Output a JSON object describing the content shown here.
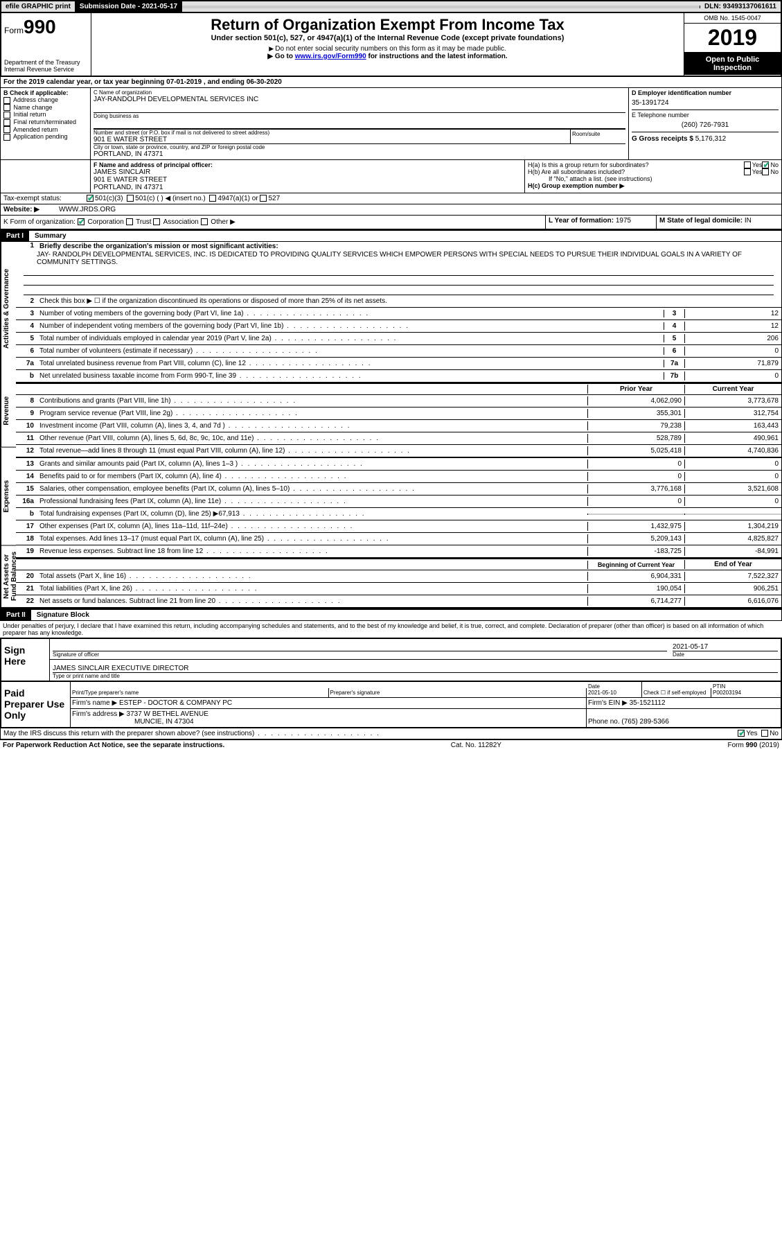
{
  "topbar": {
    "efile": "efile GRAPHIC print",
    "submission": "Submission Date - 2021-05-17",
    "dln": "DLN: 93493137061611"
  },
  "header": {
    "form_label": "Form",
    "form_num": "990",
    "title": "Return of Organization Exempt From Income Tax",
    "subtitle": "Under section 501(c), 527, or 4947(a)(1) of the Internal Revenue Code (except private foundations)",
    "note1": "Do not enter social security numbers on this form as it may be made public.",
    "note2_pre": "Go to ",
    "note2_link": "www.irs.gov/Form990",
    "note2_post": " for instructions and the latest information.",
    "dept": "Department of the Treasury\nInternal Revenue Service",
    "omb": "OMB No. 1545-0047",
    "year": "2019",
    "open": "Open to Public Inspection"
  },
  "line_a": "For the 2019 calendar year, or tax year beginning 07-01-2019   , and ending 06-30-2020",
  "section_b": {
    "label": "B Check if applicable:",
    "opts": [
      "Address change",
      "Name change",
      "Initial return",
      "Final return/terminated",
      "Amended return",
      "Application pending"
    ]
  },
  "section_c": {
    "label_name": "C Name of organization",
    "org_name": "JAY-RANDOLPH DEVELOPMENTAL SERVICES INC",
    "dba_label": "Doing business as",
    "dba": "",
    "addr_label": "Number and street (or P.O. box if mail is not delivered to street address)",
    "room_label": "Room/suite",
    "addr": "901 E WATER STREET",
    "city_label": "City or town, state or province, country, and ZIP or foreign postal code",
    "city": "PORTLAND, IN  47371"
  },
  "section_d": {
    "label": "D Employer identification number",
    "ein": "35-1391724"
  },
  "section_e": {
    "label": "E Telephone number",
    "phone": "(260) 726-7931"
  },
  "section_g": {
    "label": "G Gross receipts $",
    "amount": "5,176,312"
  },
  "section_f": {
    "label": "F  Name and address of principal officer:",
    "name": "JAMES SINCLAIR",
    "addr1": "901 E WATER STREET",
    "addr2": "PORTLAND, IN  47371"
  },
  "section_h": {
    "ha": "H(a)  Is this a group return for subordinates?",
    "hb": "H(b)  Are all subordinates included?",
    "hb_note": "If \"No,\" attach a list. (see instructions)",
    "hc": "H(c)  Group exemption number ▶"
  },
  "section_i": {
    "label": "Tax-exempt status:",
    "o1": "501(c)(3)",
    "o2": "501(c) (   ) ◀ (insert no.)",
    "o3": "4947(a)(1) or",
    "o4": "527"
  },
  "section_j": {
    "label": "Website: ▶",
    "url": "WWW.JRDS.ORG"
  },
  "section_k": {
    "label": "K Form of organization:",
    "o1": "Corporation",
    "o2": "Trust",
    "o3": "Association",
    "o4": "Other ▶"
  },
  "section_l": {
    "label": "L Year of formation:",
    "val": "1975"
  },
  "section_m": {
    "label": "M State of legal domicile:",
    "val": "IN"
  },
  "part1": {
    "label": "Part I",
    "title": "Summary"
  },
  "summary": {
    "q1_label": "Briefly describe the organization's mission or most significant activities:",
    "q1_text": "JAY- RANDOLPH DEVELOPMENTAL SERVICES, INC. IS DEDICATED TO PROVIDING QUALITY SERVICES WHICH EMPOWER PERSONS WITH SPECIAL NEEDS TO PURSUE THEIR INDIVIDUAL GOALS IN A VARIETY OF COMMUNITY SETTINGS.",
    "q2": "Check this box ▶ ☐ if the organization discontinued its operations or disposed of more than 25% of its net assets.",
    "rows_act": [
      {
        "ln": "3",
        "desc": "Number of voting members of the governing body (Part VI, line 1a)",
        "box": "3",
        "val": "12"
      },
      {
        "ln": "4",
        "desc": "Number of independent voting members of the governing body (Part VI, line 1b)",
        "box": "4",
        "val": "12"
      },
      {
        "ln": "5",
        "desc": "Total number of individuals employed in calendar year 2019 (Part V, line 2a)",
        "box": "5",
        "val": "206"
      },
      {
        "ln": "6",
        "desc": "Total number of volunteers (estimate if necessary)",
        "box": "6",
        "val": "0"
      },
      {
        "ln": "7a",
        "desc": "Total unrelated business revenue from Part VIII, column (C), line 12",
        "box": "7a",
        "val": "71,879"
      },
      {
        "ln": "b",
        "desc": "Net unrelated business taxable income from Form 990-T, line 39",
        "box": "7b",
        "val": "0"
      }
    ],
    "prior_header": "Prior Year",
    "curr_header": "Current Year",
    "rows_rev": [
      {
        "ln": "8",
        "desc": "Contributions and grants (Part VIII, line 1h)",
        "py": "4,062,090",
        "cy": "3,773,678"
      },
      {
        "ln": "9",
        "desc": "Program service revenue (Part VIII, line 2g)",
        "py": "355,301",
        "cy": "312,754"
      },
      {
        "ln": "10",
        "desc": "Investment income (Part VIII, column (A), lines 3, 4, and 7d )",
        "py": "79,238",
        "cy": "163,443"
      },
      {
        "ln": "11",
        "desc": "Other revenue (Part VIII, column (A), lines 5, 6d, 8c, 9c, 10c, and 11e)",
        "py": "528,789",
        "cy": "490,961"
      },
      {
        "ln": "12",
        "desc": "Total revenue—add lines 8 through 11 (must equal Part VIII, column (A), line 12)",
        "py": "5,025,418",
        "cy": "4,740,836"
      }
    ],
    "rows_exp": [
      {
        "ln": "13",
        "desc": "Grants and similar amounts paid (Part IX, column (A), lines 1–3 )",
        "py": "0",
        "cy": "0"
      },
      {
        "ln": "14",
        "desc": "Benefits paid to or for members (Part IX, column (A), line 4)",
        "py": "0",
        "cy": "0"
      },
      {
        "ln": "15",
        "desc": "Salaries, other compensation, employee benefits (Part IX, column (A), lines 5–10)",
        "py": "3,776,168",
        "cy": "3,521,608"
      },
      {
        "ln": "16a",
        "desc": "Professional fundraising fees (Part IX, column (A), line 11e)",
        "py": "0",
        "cy": "0"
      },
      {
        "ln": "b",
        "desc": "Total fundraising expenses (Part IX, column (D), line 25) ▶67,913",
        "py": "GREY",
        "cy": "GREY"
      },
      {
        "ln": "17",
        "desc": "Other expenses (Part IX, column (A), lines 11a–11d, 11f–24e)",
        "py": "1,432,975",
        "cy": "1,304,219"
      },
      {
        "ln": "18",
        "desc": "Total expenses. Add lines 13–17 (must equal Part IX, column (A), line 25)",
        "py": "5,209,143",
        "cy": "4,825,827"
      },
      {
        "ln": "19",
        "desc": "Revenue less expenses. Subtract line 18 from line 12",
        "py": "-183,725",
        "cy": "-84,991"
      }
    ],
    "boy_header": "Beginning of Current Year",
    "eoy_header": "End of Year",
    "rows_net": [
      {
        "ln": "20",
        "desc": "Total assets (Part X, line 16)",
        "py": "6,904,331",
        "cy": "7,522,327"
      },
      {
        "ln": "21",
        "desc": "Total liabilities (Part X, line 26)",
        "py": "190,054",
        "cy": "906,251"
      },
      {
        "ln": "22",
        "desc": "Net assets or fund balances. Subtract line 21 from line 20",
        "py": "6,714,277",
        "cy": "6,616,076"
      }
    ],
    "vlabels": {
      "act": "Activities & Governance",
      "rev": "Revenue",
      "exp": "Expenses",
      "net": "Net Assets or Fund Balances"
    }
  },
  "part2": {
    "label": "Part II",
    "title": "Signature Block",
    "penalty": "Under penalties of perjury, I declare that I have examined this return, including accompanying schedules and statements, and to the best of my knowledge and belief, it is true, correct, and complete. Declaration of preparer (other than officer) is based on all information of which preparer has any knowledge."
  },
  "sign": {
    "here": "Sign Here",
    "sig_officer": "Signature of officer",
    "date_label": "Date",
    "date": "2021-05-17",
    "name": "JAMES SINCLAIR  EXECUTIVE DIRECTOR",
    "name_label": "Type or print name and title"
  },
  "preparer": {
    "left": "Paid Preparer Use Only",
    "h1": "Print/Type preparer's name",
    "h2": "Preparer's signature",
    "h3": "Date",
    "date": "2021-05-10",
    "h4": "Check ☐ if self-employed",
    "h5": "PTIN",
    "ptin": "P00203194",
    "firm_label": "Firm's name   ▶",
    "firm": "ESTEP - DOCTOR & COMPANY PC",
    "firm_ein_label": "Firm's EIN ▶",
    "firm_ein": "35-1521112",
    "addr_label": "Firm's address ▶",
    "addr1": "3737 W BETHEL AVENUE",
    "addr2": "MUNCIE, IN  47304",
    "phone_label": "Phone no.",
    "phone": "(765) 289-5366"
  },
  "irs_q": "May the IRS discuss this return with the preparer shown above? (see instructions)",
  "footer": {
    "left": "For Paperwork Reduction Act Notice, see the separate instructions.",
    "mid": "Cat. No. 11282Y",
    "right": "Form 990 (2019)"
  }
}
